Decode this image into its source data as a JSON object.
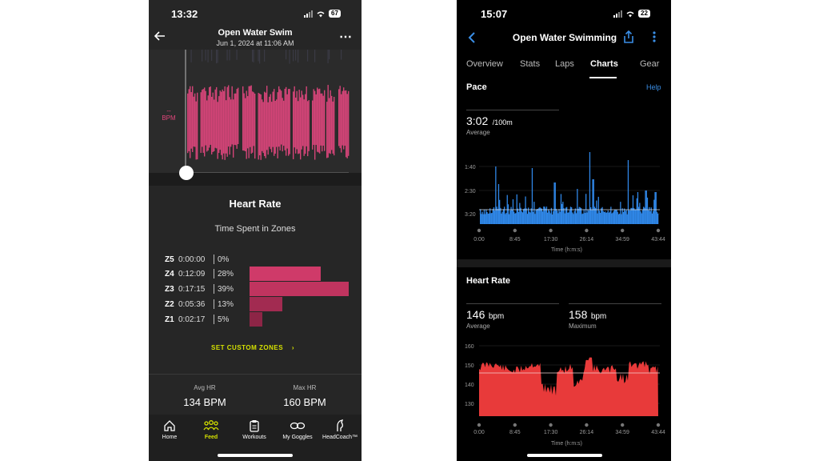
{
  "left": {
    "status": {
      "time": "13:32",
      "battery": "67"
    },
    "nav": {
      "title": "Open Water Swim",
      "subtitle": "Jun 1, 2024 at 11:06 AM"
    },
    "chart": {
      "bpm_value": "--",
      "bpm_unit": "BPM"
    },
    "heart_rate": {
      "title": "Heart Rate",
      "subtitle": "Time Spent in Zones",
      "zones": [
        {
          "zone": "Z5",
          "time": "0:00:00",
          "pct_label": "0%",
          "pct": 0,
          "color": "#e0457a"
        },
        {
          "zone": "Z4",
          "time": "0:12:09",
          "pct_label": "28%",
          "pct": 28,
          "color": "#cf3a69"
        },
        {
          "zone": "Z3",
          "time": "0:17:15",
          "pct_label": "39%",
          "pct": 39,
          "color": "#c0345f"
        },
        {
          "zone": "Z2",
          "time": "0:05:36",
          "pct_label": "13%",
          "pct": 13,
          "color": "#a22b51"
        },
        {
          "zone": "Z1",
          "time": "0:02:17",
          "pct_label": "5%",
          "pct": 5,
          "color": "#8d2546"
        }
      ],
      "custom_zones_label": "SET CUSTOM ZONES"
    },
    "stats": {
      "avg_label": "Avg HR",
      "avg_value": "134 BPM",
      "max_label": "Max HR",
      "max_value": "160 BPM"
    },
    "tabs": [
      {
        "label": "Home",
        "icon": "home-icon"
      },
      {
        "label": "Feed",
        "icon": "people-icon"
      },
      {
        "label": "Workouts",
        "icon": "clipboard-icon"
      },
      {
        "label": "My Goggles",
        "icon": "goggles-icon"
      },
      {
        "label": "HeadCoach™",
        "icon": "headcoach-icon"
      }
    ],
    "colors": {
      "accent": "#e0457a",
      "highlight": "#d4e000"
    }
  },
  "right": {
    "status": {
      "time": "15:07",
      "battery": "22"
    },
    "nav": {
      "title": "Open Water Swimming"
    },
    "tabs": [
      "Overview",
      "Stats",
      "Laps",
      "Charts",
      "Gear"
    ],
    "active_tab": "Charts",
    "pace": {
      "title": "Pace",
      "help": "Help",
      "avg_value": "3:02",
      "avg_unit": "/100m",
      "avg_label": "Average",
      "y_ticks": [
        "1:40",
        "2:30",
        "3:20"
      ],
      "x_ticks": [
        "0:00",
        "8:45",
        "17:30",
        "26:14",
        "34:59",
        "43:44"
      ],
      "x_label": "Time (h:m:s)"
    },
    "heart_rate": {
      "title": "Heart Rate",
      "avg_value": "146",
      "avg_unit": "bpm",
      "avg_label": "Average",
      "max_value": "158",
      "max_unit": "bpm",
      "max_label": "Maximum",
      "y_ticks": [
        "160",
        "150",
        "140",
        "130"
      ],
      "x_ticks": [
        "0:00",
        "8:45",
        "17:30",
        "26:14",
        "34:59",
        "43:44"
      ],
      "x_label": "Time (h:m:s)"
    },
    "colors": {
      "accent": "#3a8ee6",
      "pace": "#2f86e6",
      "hr": "#e83a3a"
    }
  }
}
